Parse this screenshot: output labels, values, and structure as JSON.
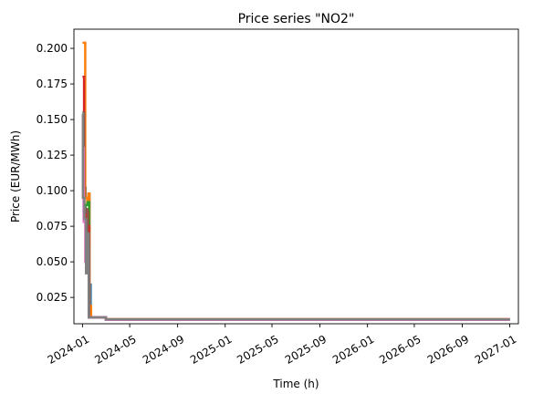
{
  "chart_data": {
    "type": "line",
    "title": "Price series \"NO2\"",
    "xlabel": "Time (h)",
    "ylabel": "Price (EUR/MWh)",
    "x_tick_labels": [
      "2024-01",
      "2024-05",
      "2024-09",
      "2025-01",
      "2025-05",
      "2025-09",
      "2026-01",
      "2026-05",
      "2026-09",
      "2027-01"
    ],
    "x_tick_dates": [
      "2024-01-01",
      "2024-05-01",
      "2024-09-01",
      "2025-01-01",
      "2025-05-01",
      "2025-09-01",
      "2026-01-01",
      "2026-05-01",
      "2026-09-01",
      "2027-01-01"
    ],
    "xlim": [
      "2023-12-10",
      "2027-01-23"
    ],
    "y_tick_labels": [
      "0.025",
      "0.050",
      "0.075",
      "0.100",
      "0.125",
      "0.150",
      "0.175",
      "0.200"
    ],
    "y_ticks": [
      0.025,
      0.05,
      0.075,
      0.1,
      0.125,
      0.15,
      0.175,
      0.2
    ],
    "ylim": [
      0.0065,
      0.2135
    ],
    "grid": false,
    "legend": "none",
    "series": [
      {
        "color": "#1f77b4",
        "points": [
          [
            "2024-01-01",
            0.13
          ],
          [
            "2024-01-03",
            0.102
          ],
          [
            "2024-01-06",
            0.102
          ],
          [
            "2024-01-09",
            0.095
          ],
          [
            "2024-01-16",
            0.097
          ],
          [
            "2024-01-19",
            0.034
          ],
          [
            "2024-01-22",
            0.011
          ],
          [
            "2024-03-01",
            0.0095
          ],
          [
            "2027-01-01",
            0.0095
          ]
        ]
      },
      {
        "color": "#ff7f0e",
        "points": [
          [
            "2024-01-01",
            0.204
          ],
          [
            "2024-01-06",
            0.204
          ],
          [
            "2024-01-08",
            0.095
          ],
          [
            "2024-01-13",
            0.09
          ],
          [
            "2024-01-16",
            0.098
          ],
          [
            "2024-01-19",
            0.019
          ],
          [
            "2024-01-23",
            0.011
          ],
          [
            "2024-03-01",
            0.0097
          ],
          [
            "2027-01-01",
            0.0097
          ]
        ]
      },
      {
        "color": "#2ca02c",
        "points": [
          [
            "2024-01-01",
            0.155
          ],
          [
            "2024-01-04",
            0.085
          ],
          [
            "2024-01-09",
            0.09
          ],
          [
            "2024-01-14",
            0.092
          ],
          [
            "2024-01-18",
            0.011
          ],
          [
            "2024-03-01",
            0.0093
          ],
          [
            "2027-01-01",
            0.0093
          ]
        ]
      },
      {
        "color": "#d62728",
        "points": [
          [
            "2024-01-01",
            0.18
          ],
          [
            "2024-01-05",
            0.08
          ],
          [
            "2024-01-10",
            0.085
          ],
          [
            "2024-01-15",
            0.075
          ],
          [
            "2024-01-18",
            0.011
          ],
          [
            "2024-03-01",
            0.0096
          ],
          [
            "2027-01-01",
            0.0096
          ]
        ]
      },
      {
        "color": "#9467bd",
        "points": [
          [
            "2024-01-01",
            0.13
          ],
          [
            "2024-01-04",
            0.08
          ],
          [
            "2024-01-09",
            0.06
          ],
          [
            "2024-01-13",
            0.05
          ],
          [
            "2024-01-17",
            0.011
          ],
          [
            "2024-03-01",
            0.0094
          ],
          [
            "2027-01-01",
            0.0094
          ]
        ]
      },
      {
        "color": "#8c564b",
        "points": [
          [
            "2024-01-01",
            0.155
          ],
          [
            "2024-01-05",
            0.085
          ],
          [
            "2024-01-10",
            0.087
          ],
          [
            "2024-01-14",
            0.06
          ],
          [
            "2024-01-18",
            0.011
          ],
          [
            "2024-03-01",
            0.0095
          ],
          [
            "2027-01-01",
            0.0095
          ]
        ]
      },
      {
        "color": "#e377c2",
        "points": [
          [
            "2024-01-01",
            0.13
          ],
          [
            "2024-01-04",
            0.078
          ],
          [
            "2024-01-08",
            0.05
          ],
          [
            "2024-01-12",
            0.045
          ],
          [
            "2024-01-17",
            0.011
          ],
          [
            "2024-03-01",
            0.0093
          ],
          [
            "2027-01-01",
            0.0093
          ]
        ]
      },
      {
        "color": "#7f7f7f",
        "points": [
          [
            "2024-01-01",
            0.154
          ],
          [
            "2024-01-02",
            0.095
          ],
          [
            "2024-01-06",
            0.08
          ],
          [
            "2024-01-10",
            0.042
          ],
          [
            "2024-01-14",
            0.07
          ],
          [
            "2024-01-17",
            0.011
          ],
          [
            "2024-03-01",
            0.0096
          ],
          [
            "2027-01-01",
            0.0096
          ]
        ]
      }
    ]
  }
}
